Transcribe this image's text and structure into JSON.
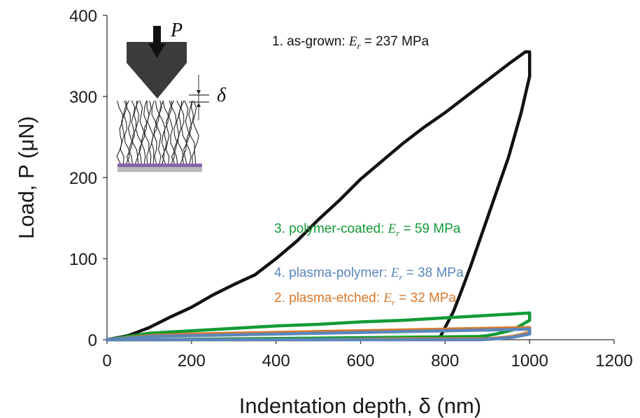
{
  "chart_data": {
    "type": "line",
    "xlabel": "Indentation depth, δ (nm)",
    "ylabel": "Load, P (μN)",
    "xlim": [
      0,
      1200
    ],
    "ylim": [
      0,
      400
    ],
    "xticks": [
      "0",
      "200",
      "400",
      "600",
      "800",
      "1000",
      "1200"
    ],
    "yticks": [
      "0",
      "100",
      "200",
      "300",
      "400"
    ],
    "series": [
      {
        "name": "1. as-grown: Er = 237 MPa",
        "color": "#111111",
        "label_parts": [
          "1. as-grown: ",
          "E",
          "r",
          " = 237 MPa"
        ],
        "x": [
          0,
          50,
          100,
          150,
          200,
          250,
          300,
          350,
          400,
          450,
          500,
          550,
          600,
          650,
          700,
          750,
          800,
          850,
          900,
          950,
          990,
          1000,
          1000,
          980,
          950,
          920,
          900,
          880,
          860,
          840,
          820,
          800,
          790,
          785
        ],
        "y": [
          0,
          5,
          15,
          28,
          40,
          55,
          68,
          80,
          100,
          122,
          148,
          172,
          198,
          220,
          242,
          262,
          280,
          300,
          320,
          340,
          355,
          355,
          325,
          280,
          225,
          180,
          150,
          120,
          90,
          62,
          35,
          15,
          5,
          0
        ]
      },
      {
        "name": "3. polymer-coated: Er = 59 MPa",
        "color": "#129b35",
        "label_parts": [
          "3. polymer-coated: ",
          "E",
          "r",
          " = 59 MPa"
        ],
        "x": [
          0,
          100,
          200,
          300,
          400,
          500,
          600,
          700,
          800,
          900,
          1000,
          1000,
          960,
          920,
          900,
          880,
          700,
          500,
          300,
          100,
          0
        ],
        "y": [
          0,
          8,
          11,
          14,
          17,
          19,
          22,
          24,
          27,
          30,
          33,
          24,
          12,
          7,
          5,
          4,
          3,
          2,
          1,
          0,
          0
        ]
      },
      {
        "name": "4. plasma-polymer: Er = 38 MPa",
        "color": "#5b86bb",
        "label_parts": [
          "4. plasma-polymer: ",
          "E",
          "r",
          " = 38 MPa"
        ],
        "x": [
          0,
          100,
          200,
          300,
          400,
          500,
          600,
          700,
          800,
          900,
          1000,
          1000,
          960,
          920,
          880,
          700,
          500,
          300,
          100,
          0
        ],
        "y": [
          0,
          4,
          5,
          6,
          7,
          8,
          9,
          10,
          11,
          12,
          13,
          7,
          3,
          1,
          0,
          0,
          0,
          0,
          0,
          0
        ]
      },
      {
        "name": "2. plasma-etched: Er = 32 MPa",
        "color": "#d9782b",
        "label_parts": [
          "2. plasma-etched: ",
          "E",
          "r",
          " = 32 MPa"
        ],
        "x": [
          0,
          100,
          200,
          300,
          400,
          500,
          600,
          700,
          800,
          900,
          1000,
          1000,
          960,
          920,
          900,
          700,
          500,
          300,
          100,
          0
        ],
        "y": [
          0,
          5,
          7,
          8,
          9,
          10,
          11,
          12,
          13,
          14,
          15,
          9,
          4,
          2,
          1,
          1,
          0,
          0,
          0,
          0
        ]
      }
    ],
    "legend": "annotations next to curves"
  },
  "inset": {
    "load_symbol": "P",
    "depth_symbol": "δ"
  }
}
